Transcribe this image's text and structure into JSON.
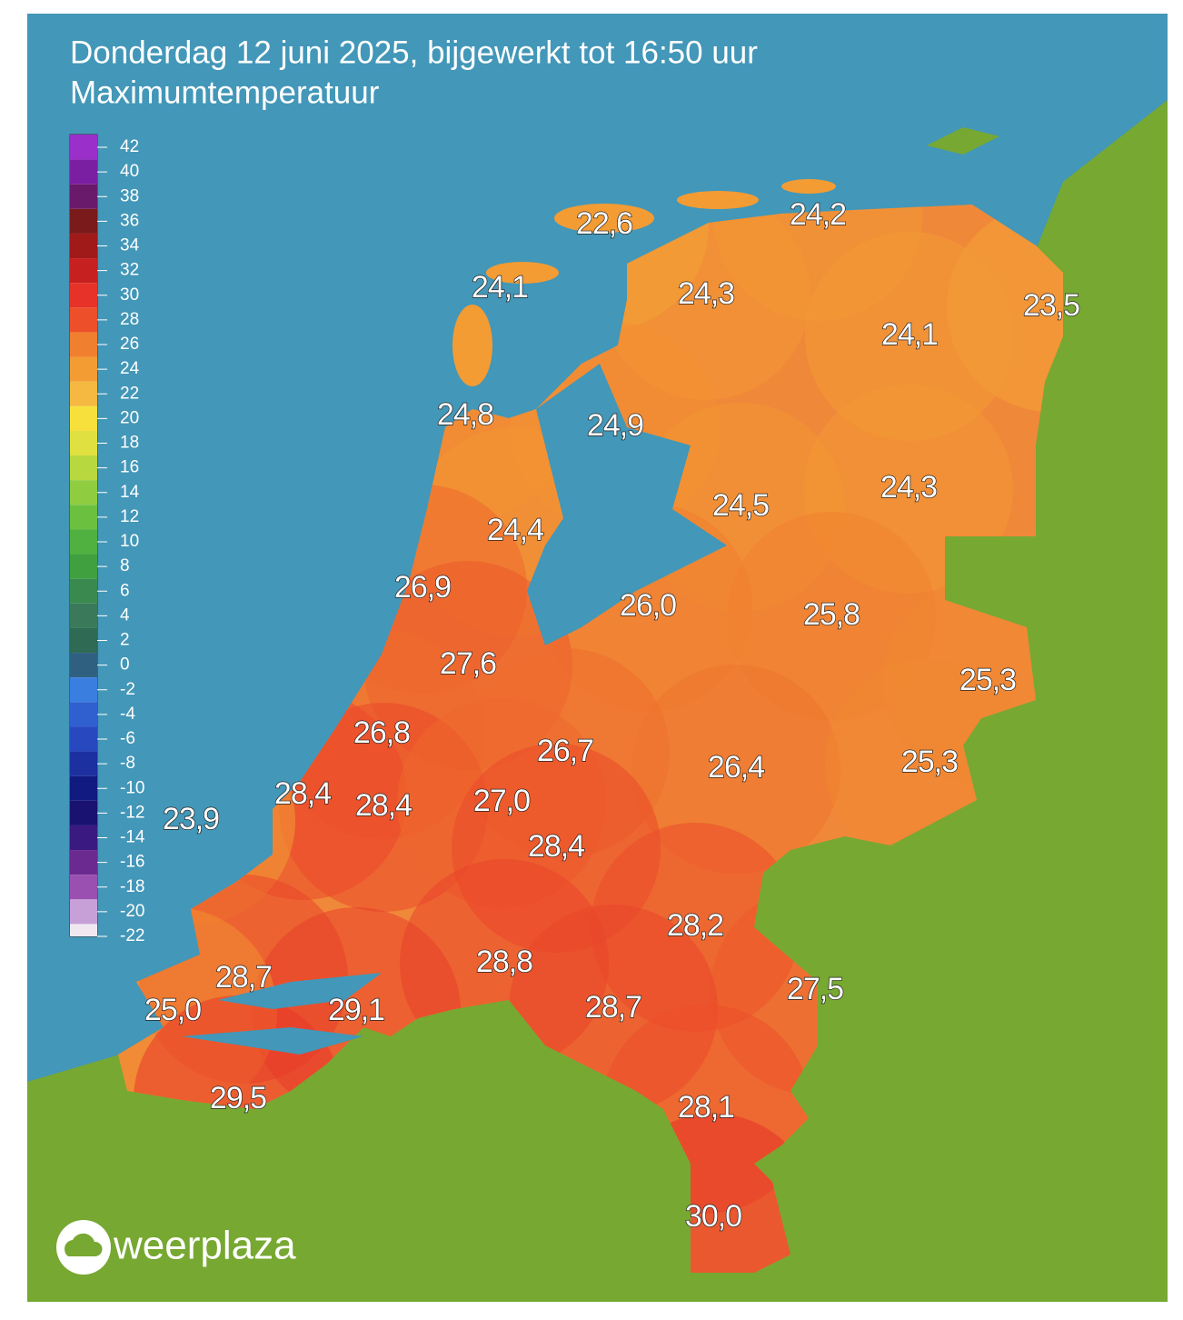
{
  "header": {
    "title": "Donderdag 12 juni 2025, bijgewerkt tot 16:50 uur",
    "subtitle": "Maximumtemperatuur"
  },
  "legend": {
    "ticks": [
      42,
      40,
      38,
      36,
      34,
      32,
      30,
      28,
      26,
      24,
      22,
      20,
      18,
      16,
      14,
      12,
      10,
      8,
      6,
      4,
      2,
      0,
      -2,
      -4,
      -6,
      -8,
      -10,
      -12,
      -14,
      -16,
      -18,
      -20,
      -22
    ],
    "colors": [
      "#9a2fc9",
      "#7b1fa2",
      "#6a1a6a",
      "#7a1a1a",
      "#a01a1a",
      "#c62020",
      "#e63228",
      "#ec4f2a",
      "#f07f2f",
      "#f39c34",
      "#f5b840",
      "#f7e03c",
      "#e0e040",
      "#b8d840",
      "#90cc40",
      "#6cc040",
      "#50b040",
      "#40a040",
      "#3a8a50",
      "#3a7a5a",
      "#2f6a55",
      "#2f6080",
      "#3a7ee0",
      "#3060d0",
      "#2848c0",
      "#1c30a0",
      "#101a80",
      "#1a1270",
      "#3a1a80",
      "#6a2a90",
      "#9a50b0",
      "#c8a0d8",
      "#f0e8f0"
    ]
  },
  "stations": [
    {
      "value": 22.6,
      "label": "22,6"
    },
    {
      "value": 24.2,
      "label": "24,2"
    },
    {
      "value": 24.1,
      "label": "24,1"
    },
    {
      "value": 24.3,
      "label": "24,3"
    },
    {
      "value": 23.5,
      "label": "23,5"
    },
    {
      "value": 24.1,
      "label": "24,1"
    },
    {
      "value": 24.8,
      "label": "24,8"
    },
    {
      "value": 24.9,
      "label": "24,9"
    },
    {
      "value": 24.3,
      "label": "24,3"
    },
    {
      "value": 24.5,
      "label": "24,5"
    },
    {
      "value": 24.4,
      "label": "24,4"
    },
    {
      "value": 26.9,
      "label": "26,9"
    },
    {
      "value": 26.0,
      "label": "26,0"
    },
    {
      "value": 25.8,
      "label": "25,8"
    },
    {
      "value": 27.6,
      "label": "27,6"
    },
    {
      "value": 25.3,
      "label": "25,3"
    },
    {
      "value": 26.8,
      "label": "26,8"
    },
    {
      "value": 26.7,
      "label": "26,7"
    },
    {
      "value": 26.4,
      "label": "26,4"
    },
    {
      "value": 25.3,
      "label": "25,3"
    },
    {
      "value": 28.4,
      "label": "28,4"
    },
    {
      "value": 28.4,
      "label": "28,4"
    },
    {
      "value": 27.0,
      "label": "27,0"
    },
    {
      "value": 23.9,
      "label": "23,9"
    },
    {
      "value": 28.4,
      "label": "28,4"
    },
    {
      "value": 28.2,
      "label": "28,2"
    },
    {
      "value": 28.8,
      "label": "28,8"
    },
    {
      "value": 28.7,
      "label": "28,7"
    },
    {
      "value": 27.5,
      "label": "27,5"
    },
    {
      "value": 29.1,
      "label": "29,1"
    },
    {
      "value": 28.7,
      "label": "28,7"
    },
    {
      "value": 25.0,
      "label": "25,0"
    },
    {
      "value": 29.5,
      "label": "29,5"
    },
    {
      "value": 28.1,
      "label": "28,1"
    },
    {
      "value": 30.0,
      "label": "30,0"
    }
  ],
  "logo": "weerplaza"
}
